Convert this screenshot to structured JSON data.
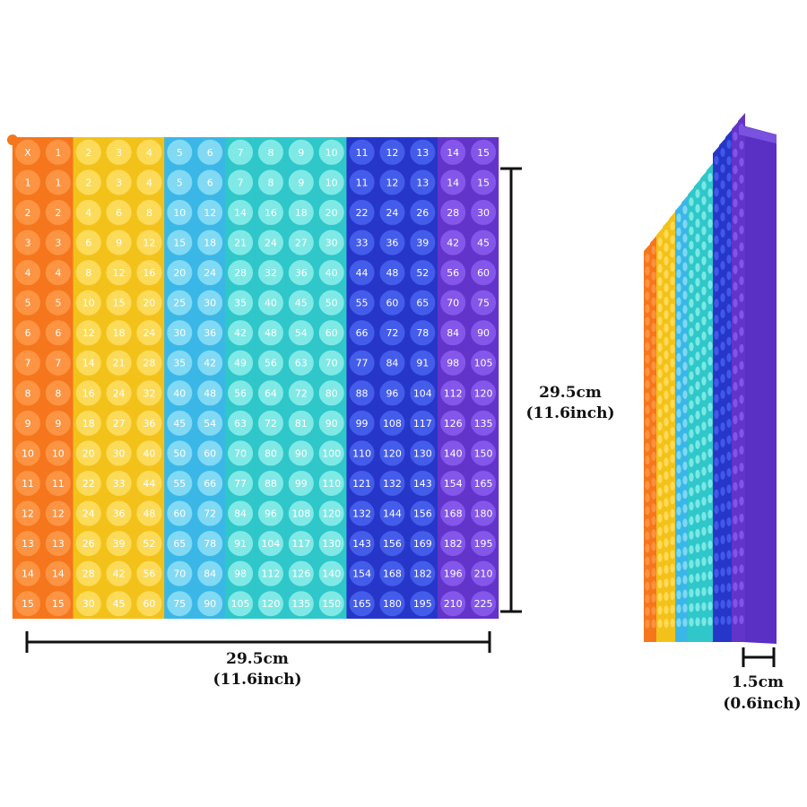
{
  "grid": {
    "rows": [
      [
        "X",
        1,
        2,
        3,
        4,
        5,
        6,
        7,
        8,
        9,
        10,
        11,
        12,
        13,
        14,
        15
      ],
      [
        1,
        1,
        2,
        3,
        4,
        5,
        6,
        7,
        8,
        9,
        10,
        11,
        12,
        13,
        14,
        15
      ],
      [
        2,
        2,
        4,
        6,
        8,
        10,
        12,
        14,
        16,
        18,
        20,
        22,
        24,
        26,
        28,
        30
      ],
      [
        3,
        3,
        6,
        9,
        12,
        15,
        18,
        21,
        24,
        27,
        30,
        33,
        36,
        39,
        42,
        45
      ],
      [
        4,
        4,
        8,
        12,
        16,
        20,
        24,
        28,
        32,
        36,
        40,
        44,
        48,
        52,
        56,
        60
      ],
      [
        5,
        5,
        10,
        15,
        20,
        25,
        30,
        35,
        40,
        45,
        50,
        55,
        60,
        65,
        70,
        75
      ],
      [
        6,
        6,
        12,
        18,
        24,
        30,
        36,
        42,
        48,
        54,
        60,
        66,
        72,
        78,
        84,
        90
      ],
      [
        7,
        7,
        14,
        21,
        28,
        35,
        42,
        49,
        56,
        63,
        70,
        77,
        84,
        91,
        98,
        105
      ],
      [
        8,
        8,
        16,
        24,
        32,
        40,
        48,
        56,
        64,
        72,
        80,
        88,
        96,
        104,
        112,
        120
      ],
      [
        9,
        9,
        18,
        27,
        36,
        45,
        54,
        63,
        72,
        81,
        90,
        99,
        108,
        117,
        126,
        135
      ],
      [
        10,
        10,
        20,
        30,
        40,
        50,
        60,
        70,
        80,
        90,
        100,
        110,
        120,
        130,
        140,
        150
      ],
      [
        11,
        11,
        22,
        33,
        44,
        55,
        66,
        77,
        88,
        99,
        110,
        121,
        132,
        143,
        154,
        165
      ],
      [
        12,
        12,
        24,
        36,
        48,
        60,
        72,
        84,
        96,
        108,
        120,
        132,
        144,
        156,
        168,
        180
      ],
      [
        13,
        13,
        26,
        39,
        52,
        65,
        78,
        91,
        104,
        117,
        130,
        143,
        156,
        169,
        182,
        195
      ],
      [
        14,
        14,
        28,
        42,
        56,
        70,
        84,
        98,
        112,
        126,
        140,
        154,
        168,
        182,
        196,
        210
      ],
      [
        15,
        15,
        30,
        45,
        60,
        75,
        90,
        105,
        120,
        135,
        150,
        165,
        180,
        195,
        210,
        225
      ]
    ]
  },
  "dimensions": {
    "width": {
      "cm": "29.5cm",
      "inch": "(11.6inch)"
    },
    "height": {
      "cm": "29.5cm",
      "inch": "(11.6inch)"
    },
    "depth": {
      "cm": "1.5cm",
      "inch": "(0.6inch)"
    }
  }
}
